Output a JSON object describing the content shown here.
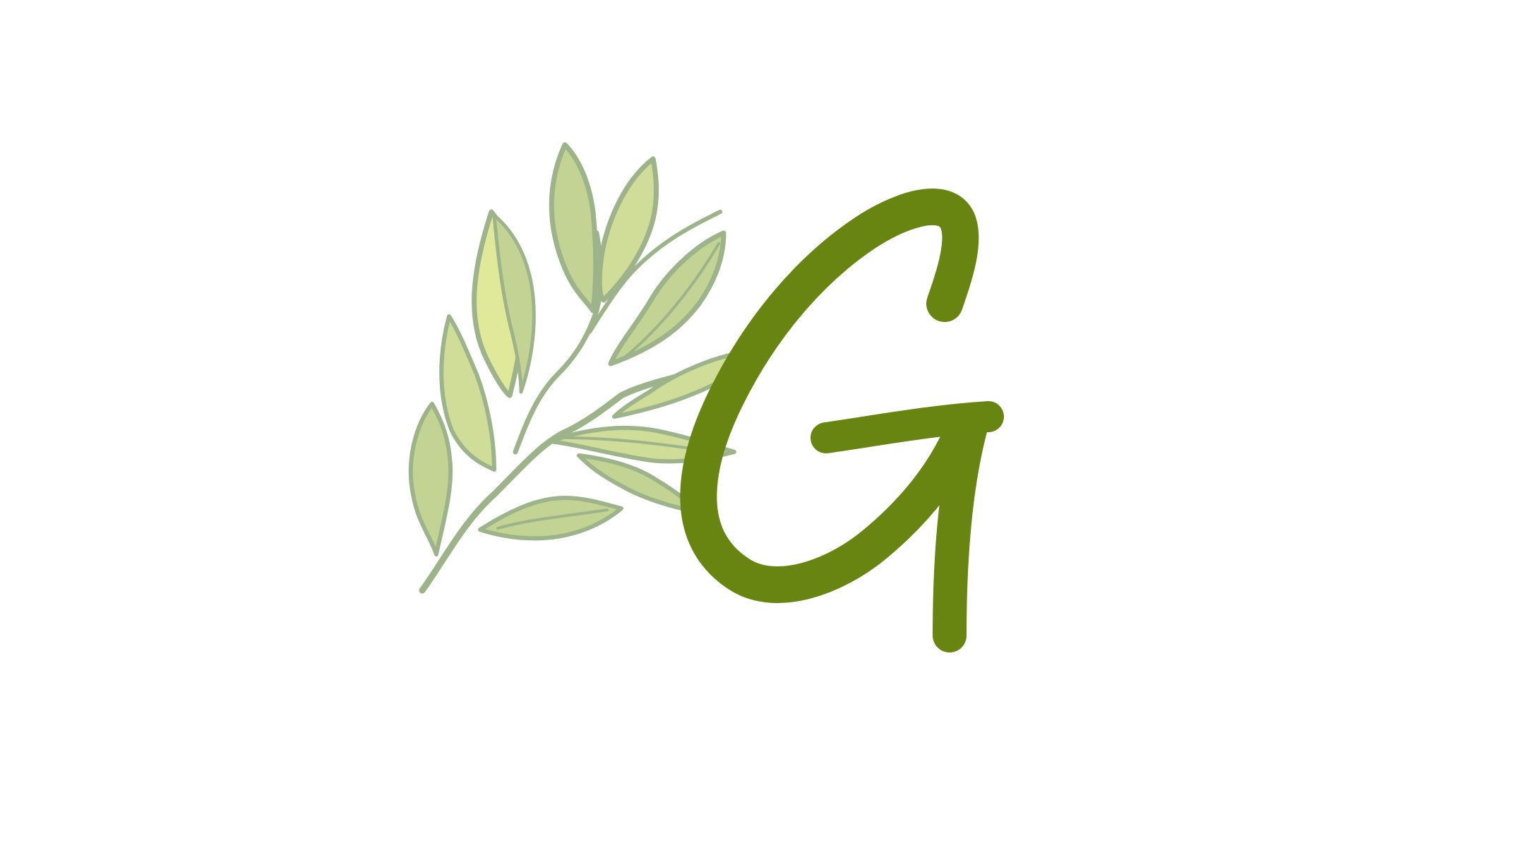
{
  "logo": {
    "monogram_letter": "G",
    "icon": "olive-branch-icon",
    "colors": {
      "background": "#ffffff",
      "letter": "#688411",
      "leaf_outline": "#9db38a",
      "leaf_fill_dark": "#c2d394",
      "leaf_fill_mid": "#cfdd98",
      "leaf_fill_light": "#e0e99a",
      "leaf_fill_muted": "#b4c78d"
    }
  }
}
